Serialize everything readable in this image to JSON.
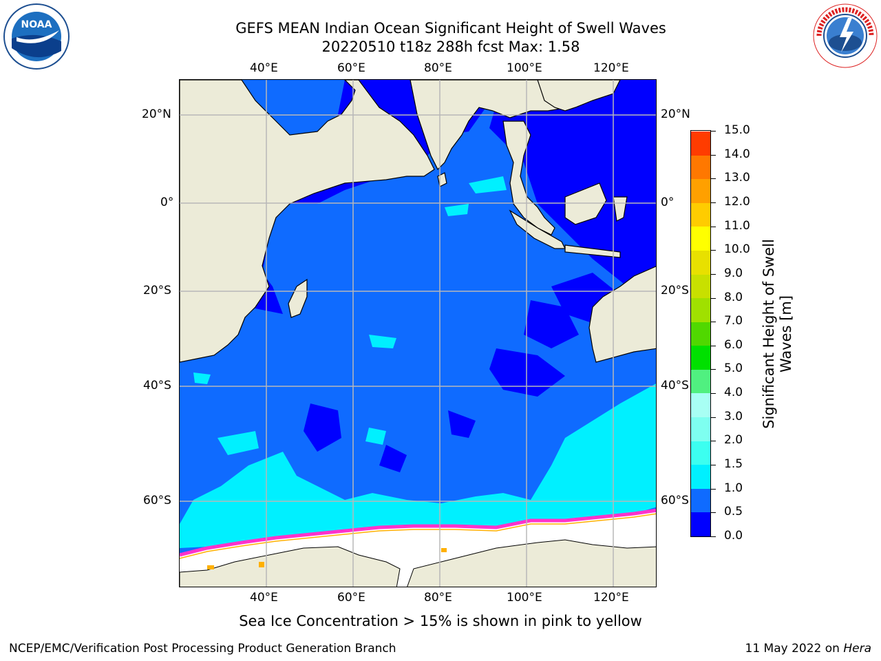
{
  "header": {
    "title_line1": "GEFS MEAN Indian Ocean Significant Height of Swell Waves",
    "title_line2": "20220510 t18z 288h fcst   Max: 1.58"
  },
  "logos": {
    "left": {
      "name": "noaa-logo",
      "text": "NOAA"
    },
    "right": {
      "name": "national-weather-service-logo",
      "text": "NATIONAL WEATHER SERVICE"
    }
  },
  "map": {
    "lon_ticks": [
      "40°E",
      "60°E",
      "80°E",
      "100°E",
      "120°E"
    ],
    "lat_ticks": [
      "20°N",
      "0°",
      "20°S",
      "40°S",
      "60°S"
    ],
    "colors": {
      "land": "#ecebd8",
      "ocean_low": "#0000ff",
      "ocean_mid": "#0f6bff",
      "ocean_high": "#00f0ff",
      "ice": "#ffffff",
      "ice_edge": "#ff33cc",
      "grid": "#b8b8b8"
    }
  },
  "colorbar": {
    "title_line1": "Significant Height of Swell",
    "title_line2": "Waves [m]",
    "ticks": [
      "0.0",
      "0.5",
      "1.0",
      "1.5",
      "2.0",
      "3.0",
      "4.0",
      "5.0",
      "6.0",
      "7.0",
      "8.0",
      "9.0",
      "10.0",
      "11.0",
      "12.0",
      "13.0",
      "14.0",
      "15.0"
    ],
    "segment_colors": [
      "#0000ff",
      "#0f6bff",
      "#00f0ff",
      "#3cfff0",
      "#7efff0",
      "#a8fff4",
      "#50f080",
      "#00e000",
      "#50d800",
      "#a0e000",
      "#c8e000",
      "#e8e000",
      "#ffff00",
      "#ffcc00",
      "#ffa000",
      "#ff7800",
      "#ff3c00",
      "#ff0000"
    ]
  },
  "caption": "Sea Ice Concentration > 15% is shown in pink to yellow",
  "footer": {
    "left": "NCEP/EMC/Verification Post Processing Product Generation Branch",
    "right_prefix": "11 May 2022 on ",
    "right_host": "Hera"
  }
}
